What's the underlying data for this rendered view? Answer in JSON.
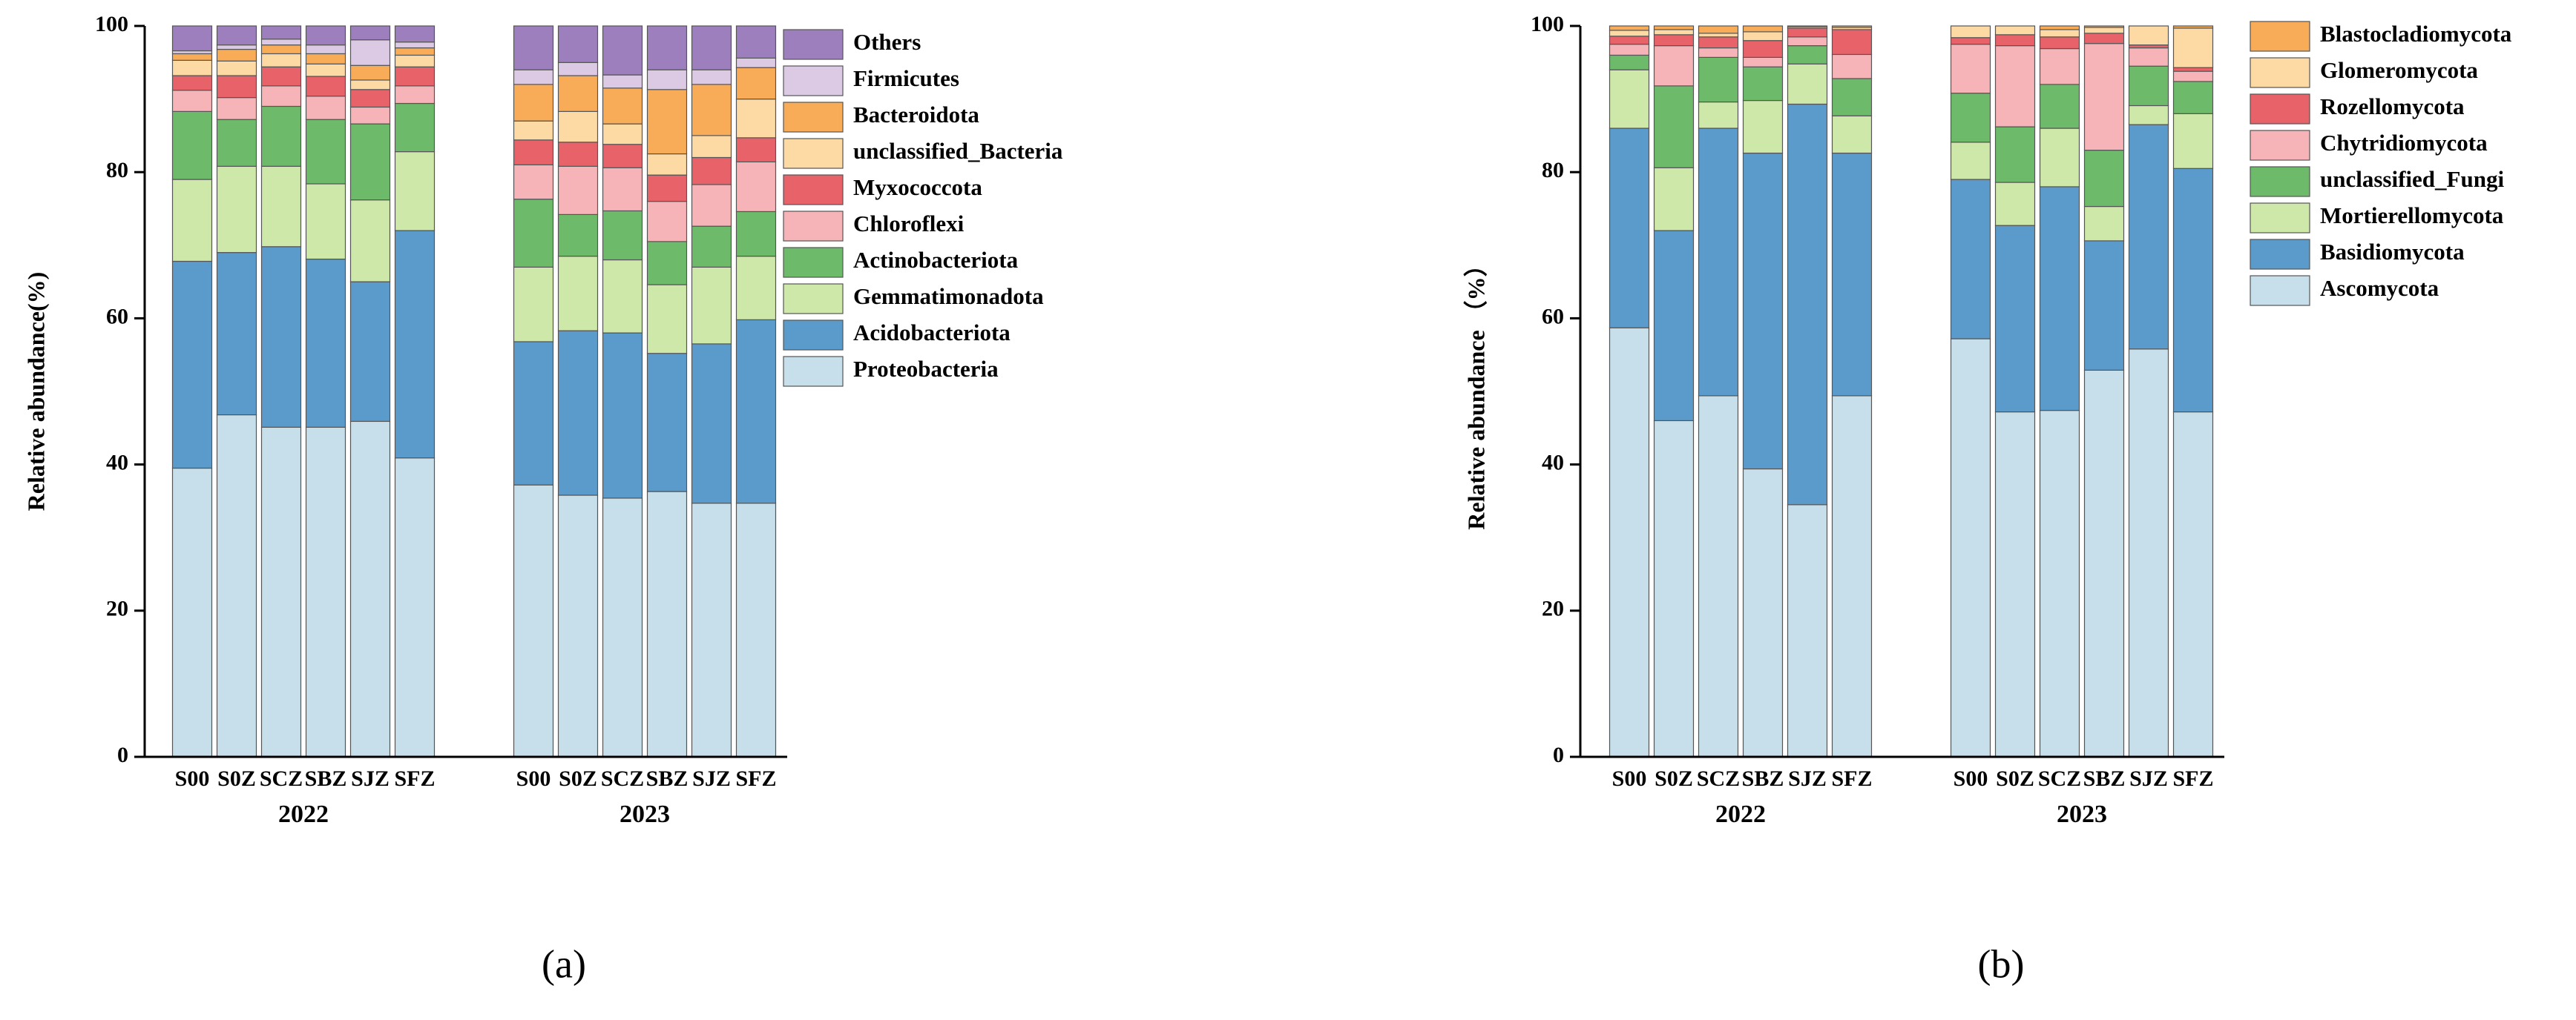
{
  "chart_data": [
    {
      "type": "stacked_bar",
      "caption": "(a)",
      "y_label": "Relative abundance(%)",
      "groups": [
        "2022",
        "2023"
      ],
      "categories": [
        "S00",
        "S0Z",
        "SCZ",
        "SBZ",
        "SJZ",
        "SFZ",
        "S00",
        "S0Z",
        "SCZ",
        "SBZ",
        "SJZ",
        "SFZ"
      ],
      "ylim": [
        0,
        100
      ],
      "yticks": [
        0,
        20,
        40,
        60,
        80,
        100
      ],
      "series": [
        {
          "name": "Proteobacteria",
          "color": "#c6dfea",
          "values": [
            39.5,
            46.8,
            45.1,
            45.1,
            45.9,
            40.9,
            37.2,
            35.8,
            35.4,
            36.3,
            34.7,
            34.7
          ]
        },
        {
          "name": "Acidobacteriota",
          "color": "#5b9bcb",
          "values": [
            28.3,
            22.2,
            24.7,
            23.0,
            19.1,
            31.1,
            19.6,
            22.5,
            22.6,
            18.9,
            21.8,
            25.1
          ]
        },
        {
          "name": "Gemmatimonadota",
          "color": "#cde8a8",
          "values": [
            11.2,
            11.8,
            11.0,
            10.3,
            11.2,
            10.8,
            10.2,
            10.2,
            10.0,
            9.4,
            10.5,
            8.7
          ]
        },
        {
          "name": "Actinobacteriota",
          "color": "#6dbb6a",
          "values": [
            9.3,
            6.4,
            8.2,
            8.8,
            10.4,
            6.6,
            9.3,
            5.7,
            6.7,
            5.9,
            5.6,
            6.1
          ]
        },
        {
          "name": "Chloroflexi",
          "color": "#f7b4b8",
          "values": [
            2.9,
            3.0,
            2.8,
            3.2,
            2.3,
            2.4,
            4.7,
            6.6,
            5.9,
            5.5,
            5.7,
            6.8
          ]
        },
        {
          "name": "Myxococcota",
          "color": "#e8626a",
          "values": [
            2.0,
            3.0,
            2.6,
            2.7,
            2.4,
            2.6,
            3.4,
            3.3,
            3.2,
            3.6,
            3.7,
            3.3
          ]
        },
        {
          "name": "unclassified_Bacteria",
          "color": "#fdd9a4",
          "values": [
            2.1,
            2.0,
            1.8,
            1.7,
            1.3,
            1.6,
            2.6,
            4.2,
            2.8,
            2.9,
            3.0,
            5.3
          ]
        },
        {
          "name": "Bacteroidota",
          "color": "#f9ac57",
          "values": [
            0.9,
            1.6,
            1.2,
            1.4,
            2.0,
            1.0,
            5.0,
            4.9,
            4.9,
            8.8,
            7.0,
            4.3
          ]
        },
        {
          "name": "Firmicutes",
          "color": "#dcc9e3",
          "values": [
            0.4,
            0.6,
            0.8,
            1.2,
            3.5,
            0.8,
            2.0,
            1.8,
            1.8,
            2.7,
            2.0,
            1.3
          ]
        },
        {
          "name": "Others",
          "color": "#9e7fbd",
          "values": [
            3.4,
            2.6,
            1.8,
            2.6,
            1.9,
            2.2,
            6.0,
            5.0,
            6.7,
            6.0,
            6.0,
            4.4
          ]
        }
      ]
    },
    {
      "type": "stacked_bar",
      "caption": "(b)",
      "y_label": "Relative abundance （%）",
      "groups": [
        "2022",
        "2023"
      ],
      "categories": [
        "S00",
        "S0Z",
        "SCZ",
        "SBZ",
        "SJZ",
        "SFZ",
        "S00",
        "S0Z",
        "SCZ",
        "SBZ",
        "SJZ",
        "SFZ"
      ],
      "ylim": [
        0,
        100
      ],
      "yticks": [
        0,
        20,
        40,
        60,
        80,
        100
      ],
      "series": [
        {
          "name": "Ascomycota",
          "color": "#c6dfea",
          "values": [
            58.7,
            46.0,
            49.4,
            39.4,
            34.5,
            49.4,
            57.2,
            47.2,
            47.4,
            52.9,
            55.8,
            47.2
          ]
        },
        {
          "name": "Basidiomycota",
          "color": "#5b9bcb",
          "values": [
            27.3,
            26.0,
            36.6,
            43.2,
            54.8,
            33.2,
            21.8,
            25.5,
            30.6,
            17.7,
            30.7,
            33.3
          ]
        },
        {
          "name": "Mortierellomycota",
          "color": "#cde8a8",
          "values": [
            8.0,
            8.6,
            3.6,
            7.2,
            5.5,
            5.1,
            5.1,
            5.9,
            8.0,
            4.7,
            2.6,
            7.5
          ]
        },
        {
          "name": "unclassified_Fungi",
          "color": "#6dbb6a",
          "values": [
            2.0,
            11.2,
            6.1,
            4.6,
            2.5,
            5.1,
            6.7,
            7.6,
            6.0,
            7.7,
            5.4,
            4.4
          ]
        },
        {
          "name": "Chytridiomycota",
          "color": "#f7b4b8",
          "values": [
            1.5,
            5.5,
            1.3,
            1.3,
            1.2,
            3.3,
            6.7,
            11.1,
            4.9,
            14.6,
            2.5,
            1.4
          ]
        },
        {
          "name": "Rozellomycota",
          "color": "#e8626a",
          "values": [
            1.1,
            1.5,
            1.5,
            2.3,
            1.2,
            3.4,
            0.9,
            1.5,
            1.6,
            1.4,
            0.4,
            0.5
          ]
        },
        {
          "name": "Glomeromycota",
          "color": "#fdd9a4",
          "values": [
            0.8,
            0.7,
            0.5,
            1.2,
            0.2,
            0.3,
            1.6,
            1.2,
            1.0,
            0.8,
            2.6,
            5.4
          ]
        },
        {
          "name": "Blastocladiomycota",
          "color": "#f9ac57",
          "values": [
            0.6,
            0.5,
            1.0,
            0.8,
            0.1,
            0.2,
            0,
            0,
            0.5,
            0.2,
            0,
            0.3
          ]
        }
      ]
    }
  ]
}
